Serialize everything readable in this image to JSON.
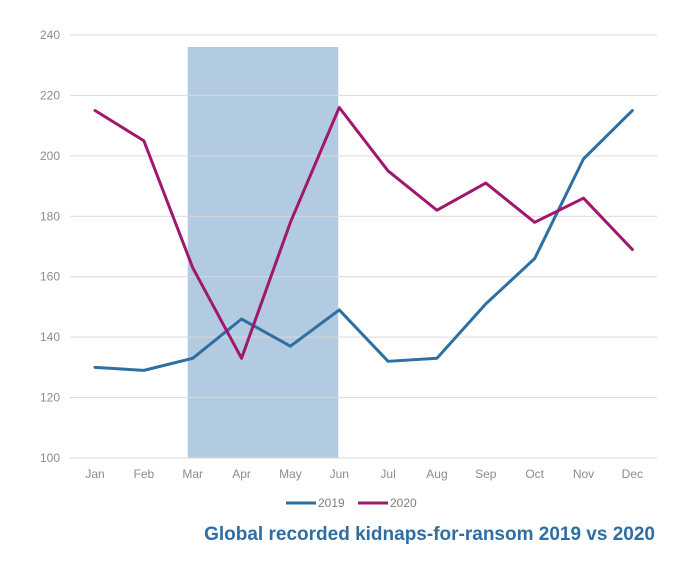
{
  "chart_data": {
    "type": "line",
    "title": "Global recorded kidnaps-for-ransom 2019 vs 2020",
    "categories": [
      "Jan",
      "Feb",
      "Mar",
      "Apr",
      "May",
      "Jun",
      "Jul",
      "Aug",
      "Sep",
      "Oct",
      "Nov",
      "Dec"
    ],
    "ylim": [
      100,
      240
    ],
    "yticks": [
      "100",
      "120",
      "140",
      "160",
      "180",
      "200",
      "220",
      "240"
    ],
    "grid": true,
    "legend_position": "bottom",
    "highlight": {
      "from": "Mar",
      "to": "Jun",
      "color": "#b3cbe0"
    },
    "series": [
      {
        "name": "2019",
        "color": "#2e6fa3",
        "values": [
          130,
          129,
          133,
          146,
          137,
          149,
          132,
          133,
          151,
          166,
          199,
          215
        ]
      },
      {
        "name": "2020",
        "color": "#a0186e",
        "values": [
          215,
          205,
          163,
          133,
          178,
          216,
          195,
          182,
          191,
          178,
          186,
          169
        ]
      }
    ]
  }
}
